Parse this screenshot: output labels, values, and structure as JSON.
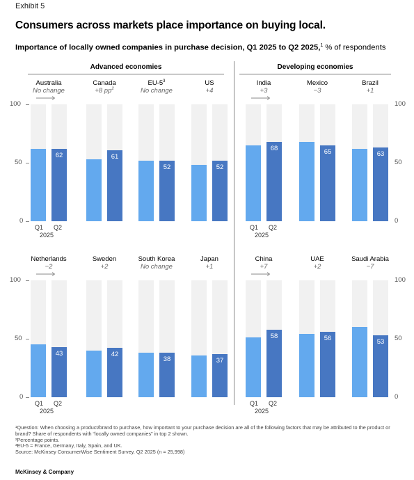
{
  "exhibit": "Exhibit 5",
  "title": "Consumers across markets place importance on buying local.",
  "subtitle_main": "Importance of locally owned companies in purchase decision, Q1 2025 to Q2 2025,",
  "subtitle_sup": "1",
  "subtitle_unit": " % of respondents",
  "groups": {
    "advanced": "Advanced economies",
    "developing": "Developing economies"
  },
  "axis_ticks": [
    "100",
    "50",
    "0"
  ],
  "x_labels": {
    "q1": "Q1",
    "q2": "Q2",
    "year": "2025"
  },
  "chart_data": {
    "type": "bar",
    "ylim": [
      0,
      100
    ],
    "categories": [
      "Q1 2025",
      "Q2 2025"
    ],
    "panels": [
      {
        "country": "Australia",
        "sup": "",
        "change": "No change",
        "group": "advanced",
        "q1": 62,
        "q2": 62,
        "q2_label": "62"
      },
      {
        "country": "Canada",
        "sup": "",
        "change": "+8 pp",
        "change_sup": "2",
        "group": "advanced",
        "q1": 53,
        "q2": 61,
        "q2_label": "61"
      },
      {
        "country": "EU-5",
        "sup": "3",
        "change": "No change",
        "group": "advanced",
        "q1": 52,
        "q2": 52,
        "q2_label": "52"
      },
      {
        "country": "US",
        "sup": "",
        "change": "+4",
        "group": "advanced",
        "q1": 48,
        "q2": 52,
        "q2_label": "52"
      },
      {
        "country": "India",
        "sup": "",
        "change": "+3",
        "group": "developing",
        "q1": 65,
        "q2": 68,
        "q2_label": "68"
      },
      {
        "country": "Mexico",
        "sup": "",
        "change": "−3",
        "group": "developing",
        "q1": 68,
        "q2": 65,
        "q2_label": "65"
      },
      {
        "country": "Brazil",
        "sup": "",
        "change": "+1",
        "group": "developing",
        "q1": 62,
        "q2": 63,
        "q2_label": "63"
      },
      {
        "country": "Netherlands",
        "sup": "",
        "change": "−2",
        "group": "advanced",
        "q1": 45,
        "q2": 43,
        "q2_label": "43"
      },
      {
        "country": "Sweden",
        "sup": "",
        "change": "+2",
        "group": "advanced",
        "q1": 40,
        "q2": 42,
        "q2_label": "42"
      },
      {
        "country": "South Korea",
        "sup": "",
        "change": "No change",
        "group": "advanced",
        "q1": 38,
        "q2": 38,
        "q2_label": "38"
      },
      {
        "country": "Japan",
        "sup": "",
        "change": "+1",
        "group": "advanced",
        "q1": 36,
        "q2": 37,
        "q2_label": "37"
      },
      {
        "country": "China",
        "sup": "",
        "change": "+7",
        "group": "developing",
        "q1": 51,
        "q2": 58,
        "q2_label": "58"
      },
      {
        "country": "UAE",
        "sup": "",
        "change": "+2",
        "group": "developing",
        "q1": 54,
        "q2": 56,
        "q2_label": "56"
      },
      {
        "country": "Saudi Arabia",
        "sup": "",
        "change": "−7",
        "group": "developing",
        "q1": 60,
        "q2": 53,
        "q2_label": "53"
      }
    ]
  },
  "colors": {
    "q1": "#63a9ee",
    "q2": "#4777c2",
    "track": "#f1f1f1"
  },
  "footnotes": [
    "¹Question: When choosing a product/brand to purchase, how important to your purchase decision are all of the following factors that may be attributed to the product or brand? Share of respondents with “locally owned companies” in top 2 shown.",
    "²Percentage points.",
    "³EU-5 = France, Germany, Italy, Spain, and UK.",
    "Source: McKinsey ConsumerWise Sentiment Survey, Q2 2025 (n = 25,998)"
  ],
  "brand": "McKinsey & Company"
}
